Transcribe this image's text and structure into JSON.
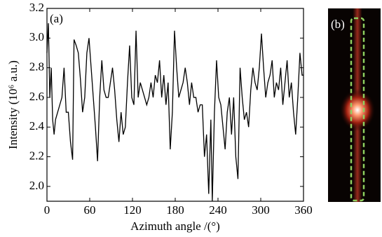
{
  "chart_data": {
    "type": "line",
    "panel_labels": [
      "(a)",
      "(b)"
    ],
    "xlabel": "Azimuth angle /(°)",
    "ylabel": "Intensity (10⁶ a.u.)",
    "xlim": [
      0,
      360
    ],
    "xticks": [
      0,
      60,
      120,
      180,
      240,
      300,
      360
    ],
    "ylim": [
      1.9,
      3.2
    ],
    "yticks": [
      {
        "value": 2.0,
        "label": "2.0"
      },
      {
        "value": 2.2,
        "label": "2.2"
      },
      {
        "value": 2.4,
        "label": "2.4"
      },
      {
        "value": 2.6,
        "label": "2.6"
      },
      {
        "value": 2.8,
        "label": "2.8"
      },
      {
        "value": 3.0,
        "label": "3.0"
      },
      {
        "value": 3.2,
        "label": "3.2"
      }
    ],
    "color": "#000000",
    "x": [
      0,
      2,
      4,
      6,
      8,
      10,
      12,
      15,
      18,
      21,
      24,
      27,
      30,
      33,
      36,
      38,
      41,
      44,
      47,
      50,
      53,
      56,
      59,
      62,
      65,
      68,
      71,
      74,
      77,
      80,
      83,
      86,
      89,
      92,
      95,
      98,
      101,
      104,
      107,
      110,
      113,
      116,
      119,
      122,
      125,
      128,
      131,
      134,
      137,
      140,
      143,
      146,
      149,
      152,
      155,
      158,
      161,
      164,
      167,
      170,
      173,
      176,
      179,
      182,
      185,
      188,
      191,
      194,
      197,
      200,
      203,
      206,
      209,
      212,
      215,
      218,
      221,
      224,
      227,
      230,
      232,
      235,
      238,
      241,
      244,
      247,
      250,
      253,
      256,
      259,
      262,
      265,
      268,
      271,
      274,
      277,
      280,
      283,
      286,
      289,
      292,
      295,
      298,
      301,
      304,
      307,
      310,
      313,
      316,
      319,
      322,
      325,
      328,
      331,
      334,
      337,
      340,
      343,
      346,
      349,
      352,
      355,
      358,
      360
    ],
    "values": [
      2.9,
      3.1,
      2.6,
      2.8,
      2.45,
      2.35,
      2.45,
      2.5,
      2.55,
      2.6,
      2.8,
      2.5,
      2.5,
      2.3,
      2.18,
      2.99,
      2.95,
      2.9,
      2.72,
      2.5,
      2.6,
      2.9,
      3.0,
      2.8,
      2.6,
      2.4,
      2.17,
      2.6,
      2.85,
      2.65,
      2.6,
      2.6,
      2.7,
      2.8,
      2.65,
      2.45,
      2.3,
      2.5,
      2.35,
      2.4,
      2.7,
      2.95,
      2.6,
      2.55,
      3.05,
      2.6,
      2.7,
      2.65,
      2.6,
      2.55,
      2.6,
      2.7,
      2.6,
      2.75,
      2.7,
      2.85,
      2.6,
      2.75,
      2.55,
      2.7,
      2.25,
      2.5,
      3.05,
      2.8,
      2.6,
      2.65,
      2.7,
      2.8,
      2.7,
      2.55,
      2.7,
      2.6,
      2.6,
      2.5,
      2.55,
      2.55,
      2.2,
      2.35,
      1.95,
      2.45,
      1.9,
      2.5,
      2.85,
      2.6,
      2.55,
      2.4,
      2.25,
      2.5,
      2.6,
      2.35,
      2.6,
      2.2,
      2.05,
      2.8,
      2.6,
      2.45,
      2.5,
      2.4,
      2.65,
      2.8,
      2.7,
      2.65,
      2.8,
      3.03,
      2.8,
      2.6,
      2.7,
      2.75,
      2.85,
      2.6,
      2.7,
      2.65,
      2.8,
      2.55,
      2.7,
      2.85,
      2.6,
      2.7,
      2.5,
      2.35,
      2.6,
      2.9,
      2.75,
      2.75
    ]
  }
}
